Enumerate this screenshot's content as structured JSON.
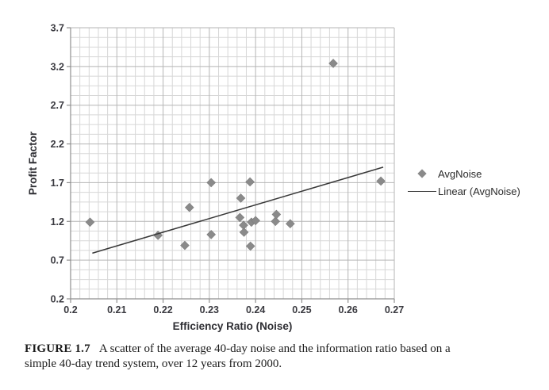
{
  "caption": {
    "label": "FIGURE 1.7",
    "line1": "A scatter of the average 40-day noise and the information ratio based on a",
    "line2": "simple 40-day trend system, over 12 years from 2000."
  },
  "chart_data": {
    "type": "scatter",
    "title": "",
    "xlabel": "Efficiency Ratio (Noise)",
    "ylabel": "Profit Factor",
    "xlim": [
      0.2,
      0.27
    ],
    "ylim": [
      0.2,
      3.7
    ],
    "x_major_step": 0.01,
    "x_minor_step": 0.002,
    "y_major_step": 0.5,
    "y_minor_step": 0.125,
    "xticklabels": [
      "0.2",
      "0.21",
      "0.22",
      "0.23",
      "0.24",
      "0.25",
      "0.26",
      "0.27"
    ],
    "yticklabels": [
      "0.2",
      "0.7",
      "1.2",
      "1.7",
      "2.2",
      "2.7",
      "3.2",
      "3.7"
    ],
    "grid": "both-major-and-minor",
    "legend_position": "right-outside",
    "colors": {
      "marker": "#8a8a8a",
      "trend_line": "#383838",
      "major_grid": "#b5b5b5",
      "minor_grid": "#d7d7d7",
      "axis": "#8f8f8f",
      "tick_text": "#3a3a40"
    },
    "series": [
      {
        "name": "AvgNoise",
        "kind": "scatter",
        "marker": "diamond",
        "points": [
          [
            0.2042,
            1.19
          ],
          [
            0.2189,
            1.02
          ],
          [
            0.2247,
            0.89
          ],
          [
            0.2257,
            1.38
          ],
          [
            0.2304,
            1.7
          ],
          [
            0.2304,
            1.03
          ],
          [
            0.2366,
            1.25
          ],
          [
            0.2368,
            1.5
          ],
          [
            0.2374,
            1.15
          ],
          [
            0.2375,
            1.06
          ],
          [
            0.2388,
            1.71
          ],
          [
            0.2391,
            1.19
          ],
          [
            0.24,
            1.21
          ],
          [
            0.2389,
            0.88
          ],
          [
            0.2443,
            1.2
          ],
          [
            0.2445,
            1.29
          ],
          [
            0.2475,
            1.17
          ],
          [
            0.2568,
            3.24
          ],
          [
            0.2671,
            1.72
          ]
        ]
      },
      {
        "name": "Linear (AvgNoise)",
        "kind": "line",
        "points": [
          [
            0.2047,
            0.79
          ],
          [
            0.2676,
            1.9
          ]
        ]
      }
    ]
  }
}
